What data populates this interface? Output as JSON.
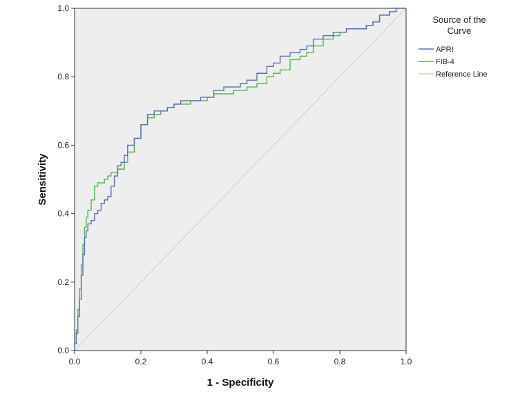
{
  "chart_data": {
    "type": "line",
    "xlabel": "1 - Specificity",
    "ylabel": "Sensitivity",
    "xlim": [
      0,
      1
    ],
    "ylim": [
      0,
      1
    ],
    "x_ticks": [
      "0.0",
      "0.2",
      "0.4",
      "0.6",
      "0.8",
      "1.0"
    ],
    "y_ticks": [
      "0.0",
      "0.2",
      "0.4",
      "0.6",
      "0.8",
      "1.0"
    ],
    "grid": false,
    "legend": {
      "title_lines": [
        "Source of the",
        "Curve"
      ],
      "placement": "right"
    },
    "plot_background": "#eeeeee",
    "series": [
      {
        "name": "APRI",
        "color": "#5a6fb5",
        "x": [
          0,
          0.005,
          0.01,
          0.015,
          0.02,
          0.025,
          0.03,
          0.035,
          0.04,
          0.05,
          0.06,
          0.07,
          0.08,
          0.09,
          0.1,
          0.11,
          0.12,
          0.13,
          0.14,
          0.15,
          0.16,
          0.18,
          0.2,
          0.22,
          0.24,
          0.26,
          0.28,
          0.3,
          0.32,
          0.35,
          0.38,
          0.4,
          0.42,
          0.45,
          0.48,
          0.5,
          0.52,
          0.55,
          0.58,
          0.6,
          0.62,
          0.65,
          0.68,
          0.7,
          0.72,
          0.75,
          0.78,
          0.8,
          0.82,
          0.85,
          0.88,
          0.9,
          0.92,
          0.95,
          0.97,
          1.0
        ],
        "y": [
          0,
          0.02,
          0.05,
          0.1,
          0.15,
          0.22,
          0.28,
          0.33,
          0.35,
          0.37,
          0.38,
          0.4,
          0.41,
          0.43,
          0.44,
          0.45,
          0.48,
          0.51,
          0.54,
          0.55,
          0.57,
          0.6,
          0.62,
          0.66,
          0.69,
          0.7,
          0.7,
          0.71,
          0.72,
          0.73,
          0.73,
          0.74,
          0.74,
          0.76,
          0.77,
          0.77,
          0.78,
          0.79,
          0.81,
          0.83,
          0.84,
          0.86,
          0.87,
          0.88,
          0.89,
          0.91,
          0.92,
          0.93,
          0.93,
          0.94,
          0.94,
          0.95,
          0.96,
          0.98,
          0.99,
          1.0
        ]
      },
      {
        "name": "FIB-4",
        "color": "#4fb84a",
        "x": [
          0,
          0.005,
          0.01,
          0.015,
          0.02,
          0.025,
          0.03,
          0.035,
          0.04,
          0.05,
          0.06,
          0.07,
          0.08,
          0.09,
          0.1,
          0.11,
          0.12,
          0.13,
          0.14,
          0.15,
          0.16,
          0.18,
          0.2,
          0.22,
          0.24,
          0.26,
          0.28,
          0.3,
          0.32,
          0.35,
          0.38,
          0.4,
          0.42,
          0.45,
          0.48,
          0.5,
          0.52,
          0.55,
          0.58,
          0.6,
          0.62,
          0.65,
          0.68,
          0.7,
          0.72,
          0.75,
          0.78,
          0.8,
          0.82,
          0.85,
          0.88,
          0.9,
          0.92,
          0.95,
          0.97,
          1.0
        ],
        "y": [
          0,
          0.02,
          0.06,
          0.12,
          0.18,
          0.25,
          0.31,
          0.36,
          0.39,
          0.41,
          0.44,
          0.48,
          0.49,
          0.49,
          0.5,
          0.51,
          0.52,
          0.52,
          0.53,
          0.53,
          0.55,
          0.58,
          0.62,
          0.66,
          0.68,
          0.69,
          0.7,
          0.71,
          0.72,
          0.72,
          0.73,
          0.73,
          0.74,
          0.75,
          0.75,
          0.76,
          0.76,
          0.77,
          0.78,
          0.8,
          0.81,
          0.82,
          0.85,
          0.86,
          0.87,
          0.89,
          0.91,
          0.92,
          0.93,
          0.94,
          0.94,
          0.95,
          0.96,
          0.98,
          0.99,
          1.0
        ]
      },
      {
        "name": "Reference Line",
        "color": "#cfd3a8",
        "x": [
          0,
          1
        ],
        "y": [
          0,
          1
        ]
      }
    ]
  }
}
